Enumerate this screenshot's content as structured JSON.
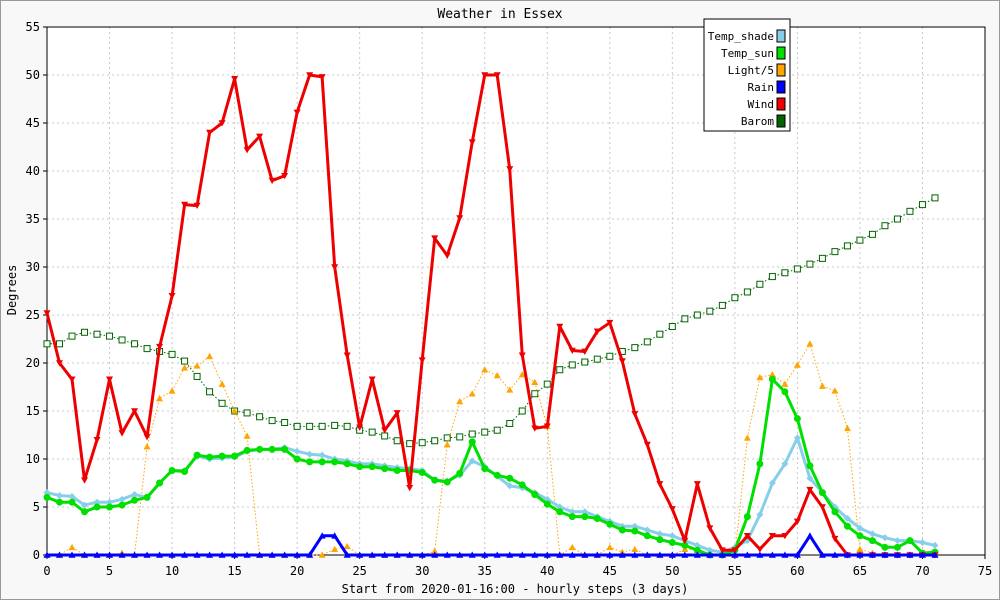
{
  "chart_data": {
    "type": "line",
    "title": "Weather in Essex",
    "xlabel": "Start from 2020-01-16:00 - hourly steps (3 days)",
    "ylabel": "Degrees",
    "xlim": [
      0,
      75
    ],
    "ylim": [
      0,
      55
    ],
    "x_ticks": [
      0,
      5,
      10,
      15,
      20,
      25,
      30,
      35,
      40,
      45,
      50,
      55,
      60,
      65,
      70,
      75
    ],
    "y_ticks": [
      0,
      5,
      10,
      15,
      20,
      25,
      30,
      35,
      40,
      45,
      50,
      55
    ],
    "grid": true,
    "legend_position": "top-right",
    "x": [
      0,
      1,
      2,
      3,
      4,
      5,
      6,
      7,
      8,
      9,
      10,
      11,
      12,
      13,
      14,
      15,
      16,
      17,
      18,
      19,
      20,
      21,
      22,
      23,
      24,
      25,
      26,
      27,
      28,
      29,
      30,
      31,
      32,
      33,
      34,
      35,
      36,
      37,
      38,
      39,
      40,
      41,
      42,
      43,
      44,
      45,
      46,
      47,
      48,
      49,
      50,
      51,
      52,
      53,
      54,
      55,
      56,
      57,
      58,
      59,
      60,
      61,
      62,
      63,
      64,
      65,
      66,
      67,
      68,
      69,
      70,
      71
    ],
    "series": [
      {
        "name": "Temp_shade",
        "color": "#87CEEB",
        "marker": "diamond",
        "line_width": 3,
        "dotted": false,
        "values": [
          6.5,
          6.2,
          6.1,
          5.2,
          5.5,
          5.5,
          5.8,
          6.3,
          6.0,
          7.5,
          8.8,
          8.8,
          10.3,
          10.0,
          10.1,
          10.2,
          10.8,
          11.0,
          11.0,
          11.2,
          10.8,
          10.5,
          10.4,
          10.0,
          9.8,
          9.5,
          9.5,
          9.3,
          9.1,
          9.0,
          8.8,
          7.8,
          7.7,
          8.3,
          9.8,
          9.2,
          8.2,
          7.2,
          7.0,
          6.5,
          5.8,
          5.0,
          4.5,
          4.5,
          4.0,
          3.5,
          3.0,
          3.0,
          2.6,
          2.2,
          2.0,
          1.5,
          1.0,
          0.5,
          0.3,
          0.8,
          1.5,
          4.2,
          7.5,
          9.5,
          12.2,
          8.0,
          6.5,
          5.0,
          3.8,
          2.8,
          2.2,
          1.8,
          1.5,
          1.5,
          1.3,
          1.0
        ]
      },
      {
        "name": "Temp_sun",
        "color": "#00E000",
        "marker": "circle",
        "line_width": 3,
        "dotted": false,
        "values": [
          6.0,
          5.5,
          5.5,
          4.5,
          5.0,
          5.0,
          5.2,
          5.7,
          6.0,
          7.5,
          8.8,
          8.7,
          10.4,
          10.2,
          10.3,
          10.3,
          10.9,
          11.0,
          11.0,
          11.0,
          10.0,
          9.7,
          9.7,
          9.7,
          9.5,
          9.2,
          9.2,
          9.0,
          8.8,
          8.8,
          8.6,
          7.8,
          7.6,
          8.5,
          11.8,
          9.0,
          8.3,
          8.0,
          7.3,
          6.3,
          5.3,
          4.5,
          4.0,
          4.0,
          3.8,
          3.2,
          2.6,
          2.5,
          2.0,
          1.6,
          1.3,
          1.0,
          0.5,
          0.0,
          0.0,
          0.5,
          4.0,
          9.5,
          18.3,
          17.0,
          14.2,
          9.3,
          6.5,
          4.5,
          3.0,
          2.0,
          1.5,
          0.8,
          0.8,
          1.5,
          0.2,
          0.3
        ]
      },
      {
        "name": "Light/5",
        "color": "#FFA500",
        "marker": "triangle",
        "line_width": 1,
        "dotted": true,
        "values": [
          0,
          0,
          0.8,
          0,
          0,
          0,
          0.2,
          0,
          11.3,
          16.3,
          17.1,
          19.5,
          19.7,
          20.7,
          17.8,
          15.0,
          12.4,
          0,
          0,
          0,
          0,
          0,
          0,
          0.6,
          0.9,
          0,
          0,
          0,
          0,
          0,
          0,
          0.4,
          11.5,
          16.0,
          16.8,
          19.3,
          18.7,
          17.2,
          18.8,
          18.0,
          13.4,
          0,
          0.8,
          0,
          0,
          0.8,
          0.3,
          0.6,
          0,
          0,
          0,
          0.6,
          0.5,
          0,
          0,
          0,
          12.2,
          18.5,
          18.8,
          17.8,
          19.8,
          22.0,
          17.6,
          17.1,
          13.2,
          0.6,
          0.2,
          0,
          0,
          0,
          0,
          0
        ]
      },
      {
        "name": "Rain",
        "color": "#0000FF",
        "marker": "triangle",
        "line_width": 3,
        "dotted": false,
        "values": [
          0,
          0,
          0,
          0,
          0,
          0,
          0,
          0,
          0,
          0,
          0,
          0,
          0,
          0,
          0,
          0,
          0,
          0,
          0,
          0,
          0,
          0,
          2.0,
          2.0,
          0,
          0,
          0,
          0,
          0,
          0,
          0,
          0,
          0,
          0,
          0,
          0,
          0,
          0,
          0,
          0,
          0,
          0,
          0,
          0,
          0,
          0,
          0,
          0,
          0,
          0,
          0,
          0,
          0,
          0,
          0,
          0,
          0,
          0,
          0,
          0,
          0,
          2.0,
          0,
          0,
          0,
          0,
          0,
          0,
          0,
          0,
          0,
          0
        ]
      },
      {
        "name": "Wind",
        "color": "#EE0000",
        "marker": "tri-down",
        "line_width": 3,
        "dotted": false,
        "values": [
          25.2,
          20.0,
          18.3,
          7.8,
          12.0,
          18.3,
          12.7,
          15.0,
          12.3,
          21.7,
          27.0,
          36.5,
          36.4,
          44.0,
          45.0,
          49.6,
          42.2,
          43.6,
          39.0,
          39.5,
          46.1,
          50.0,
          49.8,
          30.0,
          20.8,
          13.3,
          18.3,
          13.0,
          14.8,
          7.0,
          20.3,
          33.0,
          31.2,
          35.1,
          43.0,
          50.0,
          50.0,
          40.2,
          20.8,
          13.2,
          13.4,
          23.8,
          21.3,
          21.2,
          23.3,
          24.2,
          20.2,
          14.7,
          11.5,
          7.4,
          4.8,
          1.5,
          7.4,
          2.8,
          0.5,
          0.5,
          2.0,
          0.6,
          2.0,
          2.0,
          3.5,
          6.8,
          5.0,
          1.7,
          0,
          0,
          0,
          0,
          0,
          0,
          0,
          0
        ]
      },
      {
        "name": "Barom",
        "color": "#006400",
        "marker": "square",
        "line_width": 1,
        "dotted": true,
        "values": [
          22.0,
          22.0,
          22.8,
          23.2,
          23.0,
          22.8,
          22.4,
          22.0,
          21.5,
          21.2,
          20.9,
          20.2,
          18.6,
          17.0,
          15.8,
          15.0,
          14.8,
          14.4,
          14.0,
          13.8,
          13.4,
          13.4,
          13.4,
          13.5,
          13.4,
          13.0,
          12.8,
          12.4,
          11.9,
          11.6,
          11.7,
          11.9,
          12.2,
          12.3,
          12.6,
          12.8,
          13.0,
          13.7,
          15.0,
          16.8,
          17.8,
          19.3,
          19.8,
          20.1,
          20.4,
          20.7,
          21.2,
          21.6,
          22.2,
          23.0,
          23.8,
          24.6,
          25.0,
          25.4,
          26.0,
          26.8,
          27.4,
          28.2,
          29.0,
          29.4,
          29.8,
          30.3,
          30.9,
          31.6,
          32.2,
          32.8,
          33.4,
          34.3,
          35.0,
          35.8,
          36.5,
          37.2
        ]
      }
    ]
  }
}
